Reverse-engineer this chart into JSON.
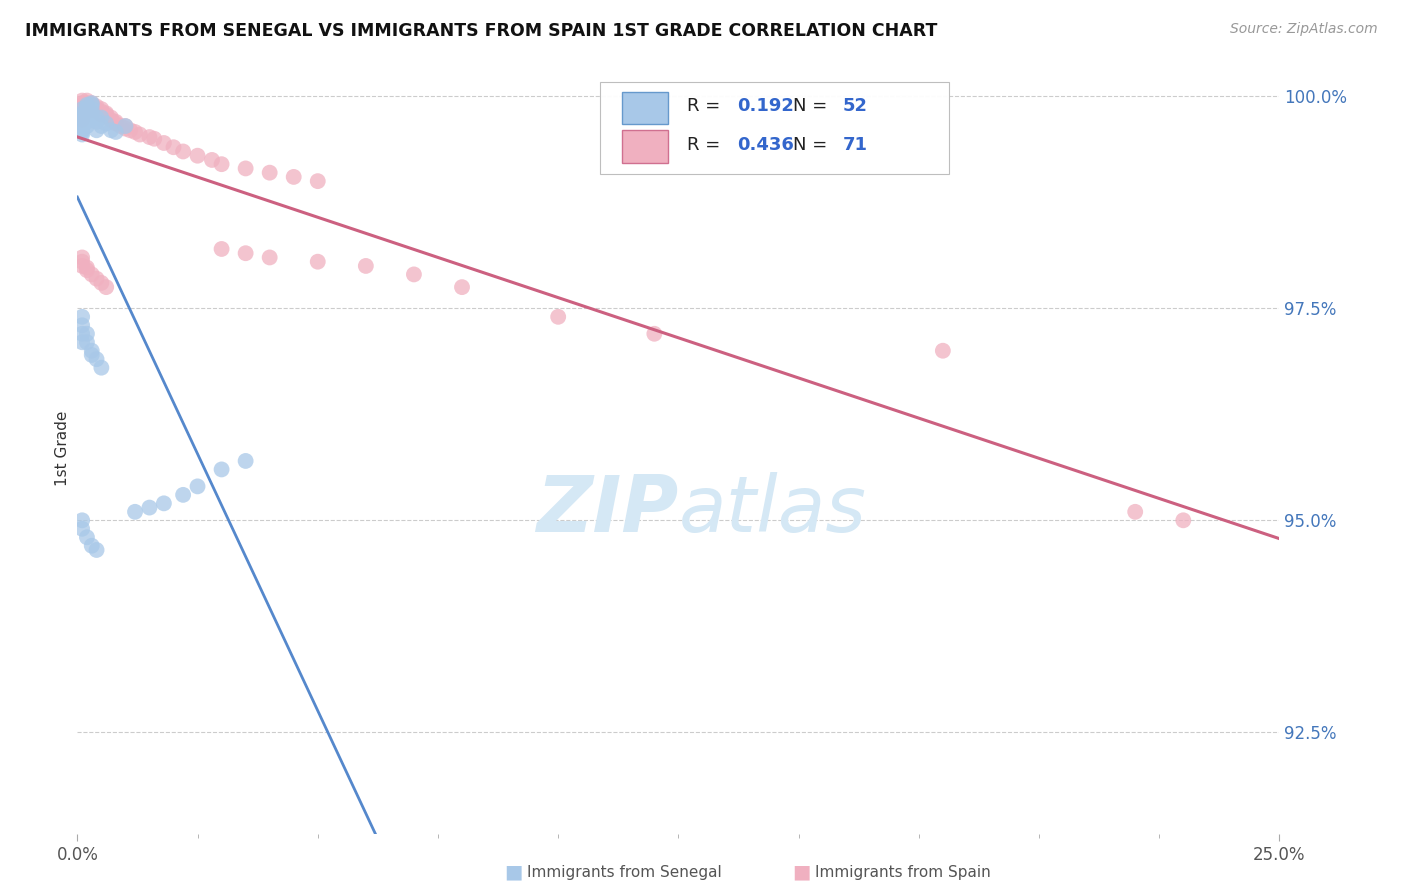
{
  "title": "IMMIGRANTS FROM SENEGAL VS IMMIGRANTS FROM SPAIN 1ST GRADE CORRELATION CHART",
  "source": "Source: ZipAtlas.com",
  "ylabel": "1st Grade",
  "xlim": [
    0.0,
    0.25
  ],
  "ylim": [
    0.913,
    1.004
  ],
  "xtick_labels": [
    "0.0%",
    "25.0%"
  ],
  "xtick_values": [
    0.0,
    0.25
  ],
  "ytick_labels": [
    "100.0%",
    "97.5%",
    "95.0%",
    "92.5%"
  ],
  "ytick_values": [
    1.0,
    0.975,
    0.95,
    0.925
  ],
  "legend_r_senegal": "0.192",
  "legend_n_senegal": "52",
  "legend_r_spain": "0.436",
  "legend_n_spain": "71",
  "color_senegal_fill": "#A8C8E8",
  "color_senegal_edge": "#6699CC",
  "color_spain_fill": "#F0B0C0",
  "color_spain_edge": "#D07090",
  "color_senegal_line": "#5588CC",
  "color_spain_line": "#CC6080",
  "color_title": "#111111",
  "color_source": "#999999",
  "color_ytick": "#4477BB",
  "color_grid": "#CCCCCC",
  "color_watermark": "#D5E8F5",
  "watermark_zip": "ZIP",
  "watermark_atlas": "atlas",
  "bottom_legend_senegal": "Immigrants from Senegal",
  "bottom_legend_spain": "Immigrants from Spain",
  "senegal_x": [
    0.001,
    0.001,
    0.001,
    0.001,
    0.001,
    0.001,
    0.001,
    0.001,
    0.001,
    0.001,
    0.002,
    0.002,
    0.002,
    0.002,
    0.002,
    0.002,
    0.002,
    0.003,
    0.003,
    0.003,
    0.003,
    0.004,
    0.004,
    0.004,
    0.005,
    0.005,
    0.006,
    0.007,
    0.008,
    0.01,
    0.001,
    0.001,
    0.001,
    0.001,
    0.002,
    0.002,
    0.003,
    0.003,
    0.004,
    0.005,
    0.001,
    0.001,
    0.002,
    0.003,
    0.004,
    0.012,
    0.015,
    0.018,
    0.022,
    0.025,
    0.03,
    0.035
  ],
  "senegal_y": [
    0.9985,
    0.998,
    0.9978,
    0.9975,
    0.997,
    0.9968,
    0.9965,
    0.996,
    0.9958,
    0.9955,
    0.999,
    0.9988,
    0.9985,
    0.998,
    0.9975,
    0.997,
    0.9965,
    0.9992,
    0.999,
    0.9985,
    0.998,
    0.9975,
    0.997,
    0.996,
    0.9975,
    0.9965,
    0.9968,
    0.996,
    0.9958,
    0.9965,
    0.974,
    0.973,
    0.972,
    0.971,
    0.972,
    0.971,
    0.97,
    0.9695,
    0.969,
    0.968,
    0.95,
    0.949,
    0.948,
    0.947,
    0.9465,
    0.951,
    0.9515,
    0.952,
    0.953,
    0.954,
    0.956,
    0.957
  ],
  "spain_x": [
    0.001,
    0.001,
    0.001,
    0.001,
    0.001,
    0.001,
    0.001,
    0.001,
    0.001,
    0.001,
    0.002,
    0.002,
    0.002,
    0.002,
    0.002,
    0.002,
    0.003,
    0.003,
    0.003,
    0.003,
    0.004,
    0.004,
    0.004,
    0.005,
    0.005,
    0.005,
    0.006,
    0.006,
    0.007,
    0.007,
    0.008,
    0.008,
    0.009,
    0.01,
    0.01,
    0.011,
    0.012,
    0.013,
    0.015,
    0.016,
    0.018,
    0.02,
    0.022,
    0.025,
    0.028,
    0.03,
    0.035,
    0.04,
    0.045,
    0.05,
    0.001,
    0.001,
    0.001,
    0.002,
    0.002,
    0.003,
    0.004,
    0.005,
    0.006,
    0.03,
    0.035,
    0.04,
    0.05,
    0.06,
    0.07,
    0.08,
    0.1,
    0.12,
    0.18,
    0.22,
    0.23
  ],
  "spain_y": [
    0.9995,
    0.9992,
    0.999,
    0.9988,
    0.9985,
    0.9982,
    0.998,
    0.9978,
    0.9975,
    0.9972,
    0.9995,
    0.9992,
    0.999,
    0.9988,
    0.9985,
    0.9982,
    0.9992,
    0.999,
    0.9988,
    0.9985,
    0.9988,
    0.9985,
    0.9982,
    0.9985,
    0.9982,
    0.9978,
    0.998,
    0.9978,
    0.9975,
    0.9972,
    0.997,
    0.9968,
    0.9965,
    0.9965,
    0.9962,
    0.996,
    0.9958,
    0.9955,
    0.9952,
    0.995,
    0.9945,
    0.994,
    0.9935,
    0.993,
    0.9925,
    0.992,
    0.9915,
    0.991,
    0.9905,
    0.99,
    0.981,
    0.9805,
    0.98,
    0.9798,
    0.9795,
    0.979,
    0.9785,
    0.978,
    0.9775,
    0.982,
    0.9815,
    0.981,
    0.9805,
    0.98,
    0.979,
    0.9775,
    0.974,
    0.972,
    0.97,
    0.951,
    0.95
  ]
}
